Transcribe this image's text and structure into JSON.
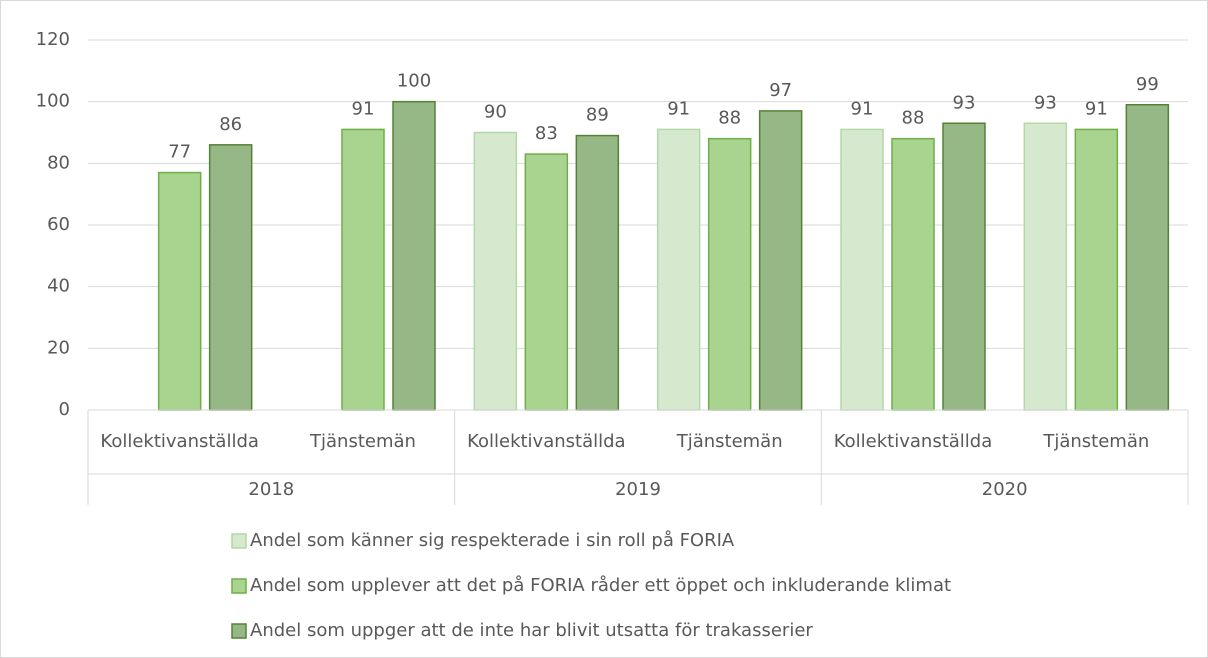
{
  "chart_data": {
    "type": "bar",
    "categories": [
      "Kollektivanställda",
      "Tjänstemän",
      "Kollektivanställda",
      "Tjänstemän",
      "Kollektivanställda",
      "Tjänstemän"
    ],
    "groups": [
      "2018",
      "2019",
      "2020"
    ],
    "series": [
      {
        "name": "Andel som känner sig respekterade i sin roll på FORIA",
        "color": "#d6e9cf",
        "border": "#b4d8a6",
        "values": [
          null,
          null,
          90,
          91,
          91,
          93
        ]
      },
      {
        "name": "Andel som upplever att det på FORIA råder ett öppet och inkluderande klimat",
        "color": "#a8d490",
        "border": "#6fae47",
        "values": [
          77,
          91,
          83,
          88,
          88,
          91
        ]
      },
      {
        "name": "Andel som uppger att de inte har blivit utsatta för trakasserier",
        "color": "#96b886",
        "border": "#548235",
        "values": [
          86,
          100,
          89,
          97,
          93,
          99
        ]
      }
    ],
    "ylim": [
      0,
      120
    ],
    "yticks": [
      0,
      20,
      40,
      60,
      80,
      100,
      120
    ],
    "grid": true,
    "legend": "bottom"
  }
}
